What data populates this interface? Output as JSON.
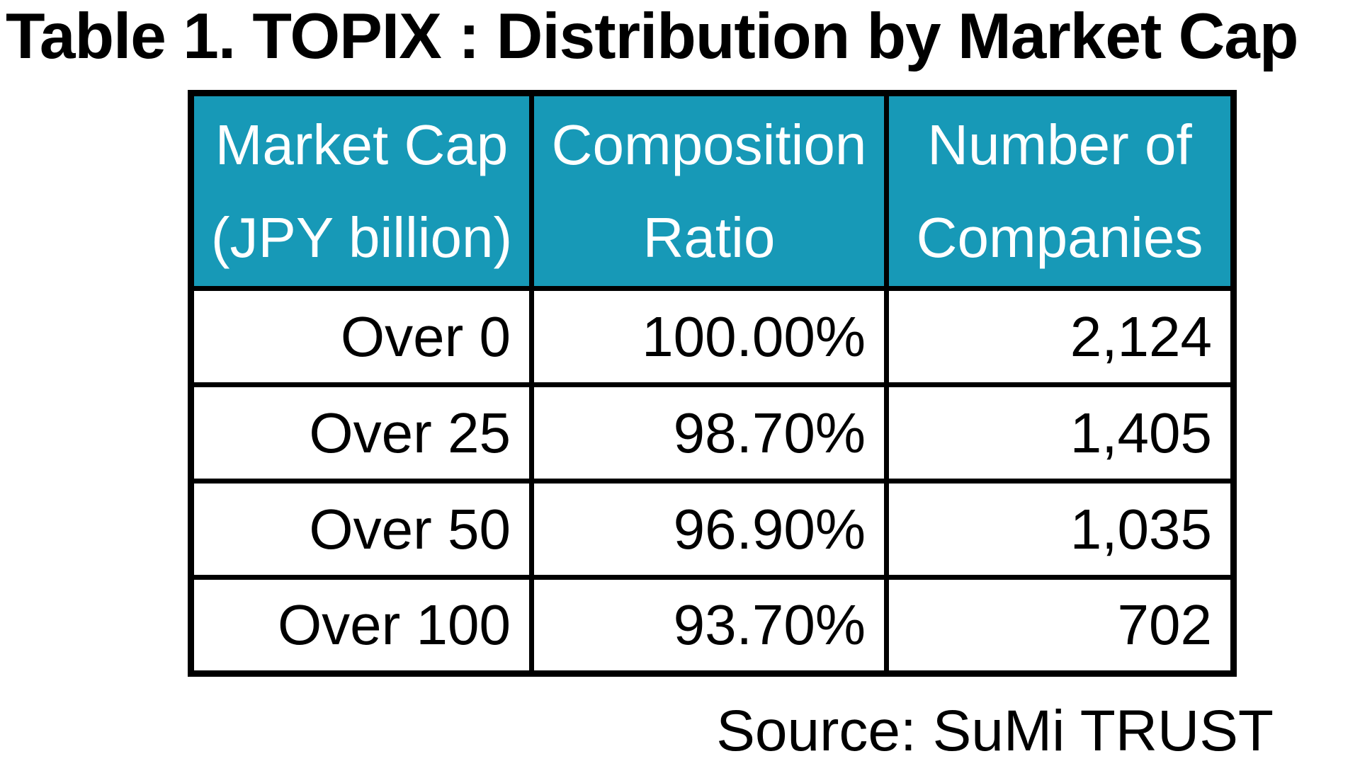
{
  "page": {
    "title": "Table 1. TOPIX : Distribution by Market Cap",
    "source": "Source: SuMi TRUST"
  },
  "colors": {
    "background": "#FFFFFF",
    "header_bg": "#1799B7",
    "header_text": "#FFFFFF",
    "border": "#000000",
    "text": "#000000"
  },
  "table": {
    "columns": [
      {
        "key": "market_cap",
        "label_lines": [
          "Market Cap",
          "(JPY billion)"
        ]
      },
      {
        "key": "composition_ratio",
        "label_lines": [
          "Composition",
          "Ratio"
        ]
      },
      {
        "key": "number_of_companies",
        "label_lines": [
          "Number of",
          "Companies"
        ]
      }
    ],
    "rows": [
      [
        "Over 0",
        "100.00%",
        "2,124"
      ],
      [
        "Over 25",
        "98.70%",
        "1,405"
      ],
      [
        "Over 50",
        "96.90%",
        "1,035"
      ],
      [
        "Over 100",
        "93.70%",
        "702"
      ]
    ]
  }
}
